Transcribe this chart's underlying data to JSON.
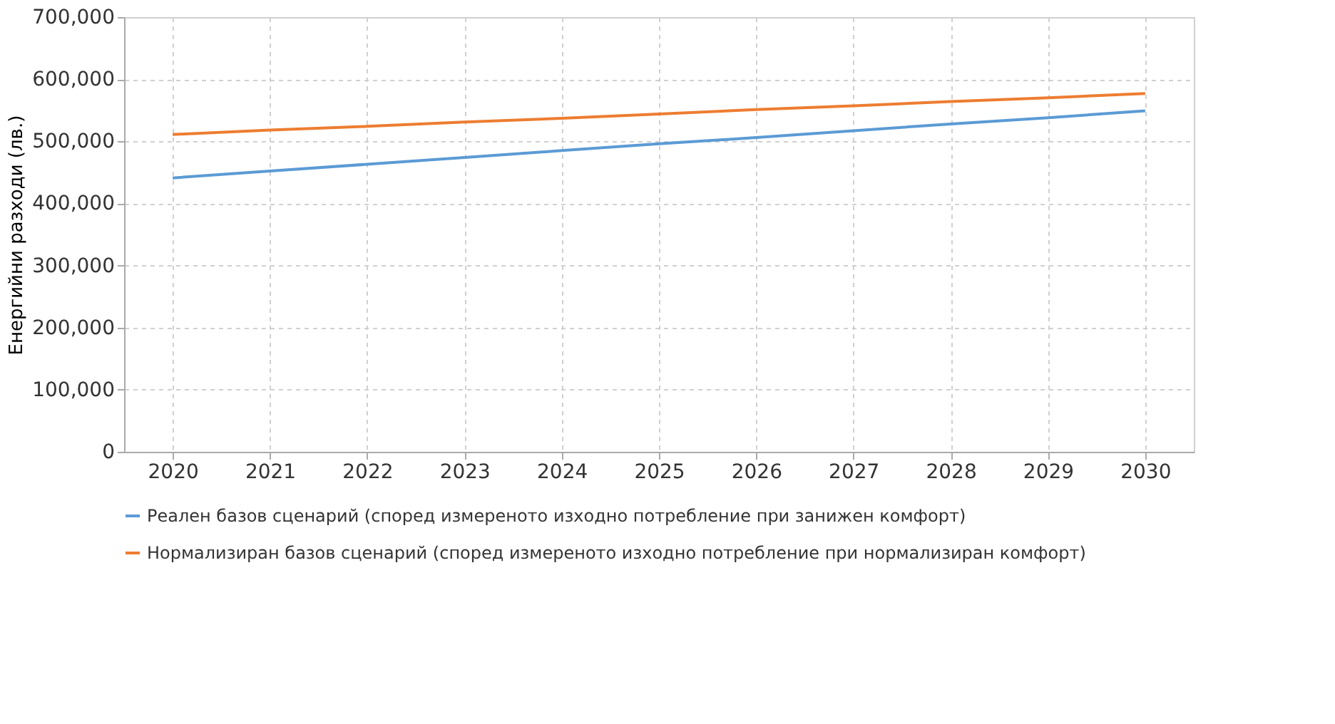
{
  "chart_data": {
    "type": "line",
    "ylabel": "Енергийни разходи (лв.)",
    "categories": [
      "2020",
      "2021",
      "2022",
      "2023",
      "2024",
      "2025",
      "2026",
      "2027",
      "2028",
      "2029",
      "2030"
    ],
    "series": [
      {
        "name": "Реален базов сценарий (според измереното изходно потребление при занижен комфорт)",
        "color": "#5b9bd5",
        "values": [
          441000,
          452000,
          463000,
          474000,
          485000,
          496000,
          506000,
          517000,
          528000,
          538000,
          549000
        ]
      },
      {
        "name": "Нормализиран базов сценарий (според измереното изходно потребление при нормализиран комфорт)",
        "color": "#ed7d31",
        "values": [
          511000,
          518000,
          524000,
          531000,
          537000,
          544000,
          551000,
          557000,
          564000,
          570000,
          577000
        ]
      }
    ],
    "ylim": [
      0,
      700000
    ],
    "yticks": [
      {
        "value": 0,
        "label": "0"
      },
      {
        "value": 100000,
        "label": "100,000"
      },
      {
        "value": 200000,
        "label": "200,000"
      },
      {
        "value": 300000,
        "label": "300,000"
      },
      {
        "value": 400000,
        "label": "400,000"
      },
      {
        "value": 500000,
        "label": "500,000"
      },
      {
        "value": 600000,
        "label": "600,000"
      },
      {
        "value": 700000,
        "label": "700,000"
      }
    ],
    "grid": true,
    "legend": "bottom",
    "line_style": "solid",
    "marker": "none"
  }
}
